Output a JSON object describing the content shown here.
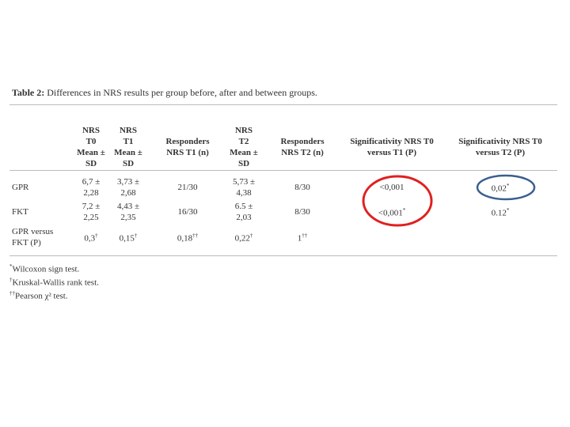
{
  "table": {
    "caption": {
      "label": "Table 2:",
      "text": "Differences in NRS results per group before, after and between groups."
    },
    "header": [
      "NRS\nT0\nMean ±\nSD",
      "NRS\nT1\nMean ±\nSD",
      "Responders\nNRS T1 (n)",
      "NRS\nT2\nMean ±\nSD",
      "Responders\nNRS T2 (n)",
      "Significativity NRS T0\nversus T1 (P)",
      "Significativity NRS T0\nversus T2 (P)"
    ],
    "rows": [
      {
        "label": "GPR",
        "cells": [
          {
            "text": "6,7 ±\n2,28"
          },
          {
            "text": "3,73 ±\n2,68"
          },
          {
            "text": "21/30"
          },
          {
            "text": "5,73 ±\n4,38"
          },
          {
            "text": "8/30"
          },
          {
            "text": "<0,001"
          },
          {
            "text": "0,02",
            "sup": "*"
          }
        ]
      },
      {
        "label": "FKT",
        "cells": [
          {
            "text": "7,2 ±\n2,25"
          },
          {
            "text": "4,43 ±\n2,35"
          },
          {
            "text": "16/30"
          },
          {
            "text": "6.5 ±\n2,03"
          },
          {
            "text": "8/30"
          },
          {
            "text": "<0,001",
            "sup": "*"
          },
          {
            "text": "0.12",
            "sup": "*"
          }
        ]
      },
      {
        "label": "GPR versus\nFKT (P)",
        "cells": [
          {
            "text": "0,3",
            "sup": "†"
          },
          {
            "text": "0,15",
            "sup": "†"
          },
          {
            "text": "0,18",
            "sup": "††"
          },
          {
            "text": "0,22",
            "sup": "†"
          },
          {
            "text": "1",
            "sup": "††"
          }
        ]
      }
    ],
    "footnotes": [
      {
        "mark": "*",
        "text": "Wilcoxon sign test."
      },
      {
        "mark": "†",
        "text": "Kruskal-Wallis rank test."
      },
      {
        "mark": "††",
        "text": "Pearson χ² test."
      }
    ]
  }
}
